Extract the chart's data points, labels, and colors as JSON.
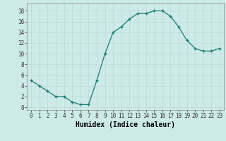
{
  "x": [
    0,
    1,
    2,
    3,
    4,
    5,
    6,
    7,
    8,
    9,
    10,
    11,
    12,
    13,
    14,
    15,
    16,
    17,
    18,
    19,
    20,
    21,
    22,
    23
  ],
  "y": [
    5,
    4,
    3,
    2,
    2,
    1,
    0.5,
    0.5,
    5,
    10,
    14,
    15,
    16.5,
    17.5,
    17.5,
    18,
    18,
    17,
    15,
    12.5,
    11,
    10.5,
    10.5,
    11
  ],
  "line_color": "#1a7a6e",
  "marker_color": "#1a7a6e",
  "bg_color": "#cceae8",
  "grid_color": "#c0d8d8",
  "xlabel": "Humidex (Indice chaleur)",
  "xlim": [
    -0.5,
    23.5
  ],
  "ylim": [
    -0.5,
    19.5
  ],
  "yticks": [
    0,
    2,
    4,
    6,
    8,
    10,
    12,
    14,
    16,
    18
  ],
  "xticks": [
    0,
    1,
    2,
    3,
    4,
    5,
    6,
    7,
    8,
    9,
    10,
    11,
    12,
    13,
    14,
    15,
    16,
    17,
    18,
    19,
    20,
    21,
    22,
    23
  ],
  "tick_fontsize": 5.5,
  "xlabel_fontsize": 7
}
